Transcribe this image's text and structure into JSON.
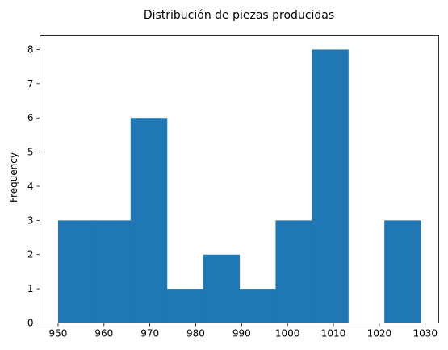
{
  "chart_data": {
    "type": "bar",
    "title": "Distribución de piezas producidas",
    "xlabel": "",
    "ylabel": "Frequency",
    "bins": [
      {
        "start": 950.0,
        "end": 957.9,
        "count": 3
      },
      {
        "start": 957.9,
        "end": 965.8,
        "count": 3
      },
      {
        "start": 965.8,
        "end": 973.7,
        "count": 6
      },
      {
        "start": 973.7,
        "end": 981.6,
        "count": 1
      },
      {
        "start": 981.6,
        "end": 989.5,
        "count": 2
      },
      {
        "start": 989.5,
        "end": 997.4,
        "count": 1
      },
      {
        "start": 997.4,
        "end": 1005.3,
        "count": 3
      },
      {
        "start": 1005.3,
        "end": 1013.2,
        "count": 8
      },
      {
        "start": 1013.2,
        "end": 1021.1,
        "count": 0
      },
      {
        "start": 1021.1,
        "end": 1029.0,
        "count": 3
      }
    ],
    "xlim": [
      946.05,
      1032.95
    ],
    "ylim": [
      0,
      8.4
    ],
    "xticks": [
      950,
      960,
      970,
      980,
      990,
      1000,
      1010,
      1020,
      1030
    ],
    "yticks": [
      0,
      1,
      2,
      3,
      4,
      5,
      6,
      7,
      8
    ],
    "bar_color": "#1f77b4",
    "grid": false,
    "legend": "none"
  }
}
